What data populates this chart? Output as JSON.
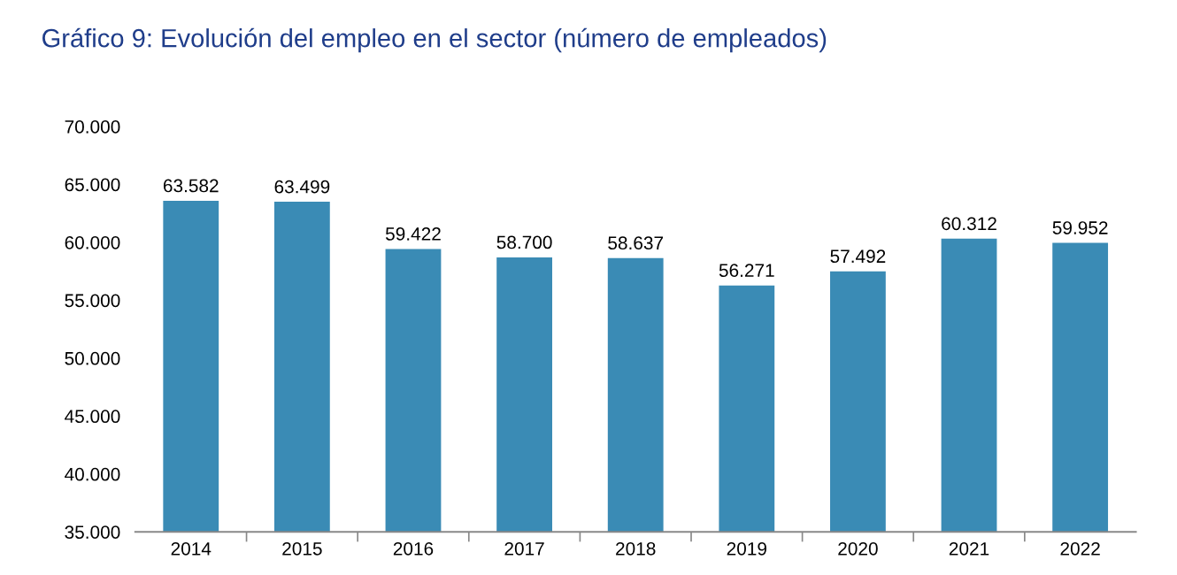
{
  "chart_data": {
    "type": "bar",
    "title": "Gráfico 9: Evolución del empleo en el sector (número de empleados)",
    "categories": [
      "2014",
      "2015",
      "2016",
      "2017",
      "2018",
      "2019",
      "2020",
      "2021",
      "2022"
    ],
    "values": [
      63582,
      63499,
      59422,
      58700,
      58637,
      56271,
      57492,
      60312,
      59952
    ],
    "value_labels": [
      "63.582",
      "63.499",
      "59.422",
      "58.700",
      "58.637",
      "56.271",
      "57.492",
      "60.312",
      "59.952"
    ],
    "color": "#3a8bb5",
    "ylim": [
      35000,
      70000
    ],
    "yticks": [
      {
        "value": 35000,
        "label": "35.000"
      },
      {
        "value": 40000,
        "label": "40.000"
      },
      {
        "value": 45000,
        "label": "45.000"
      },
      {
        "value": 50000,
        "label": "50.000"
      },
      {
        "value": 55000,
        "label": "55.000"
      },
      {
        "value": 60000,
        "label": "60.000"
      },
      {
        "value": 65000,
        "label": "65.000"
      },
      {
        "value": 70000,
        "label": "70.000"
      }
    ],
    "grid": false,
    "legend": false
  }
}
